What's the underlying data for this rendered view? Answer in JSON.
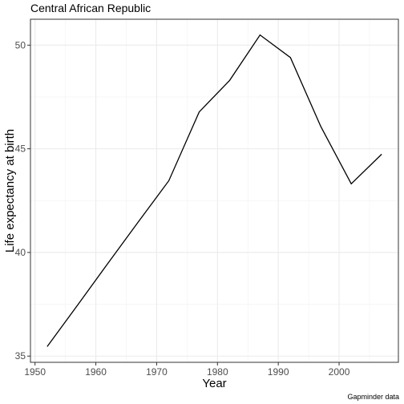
{
  "chart_data": {
    "type": "line",
    "title": "Central African Republic",
    "xlabel": "Year",
    "ylabel": "Life expectancy at birth",
    "caption": "Gapminder data",
    "x": [
      1952,
      1957,
      1962,
      1967,
      1972,
      1977,
      1982,
      1987,
      1992,
      1997,
      2002,
      2007
    ],
    "series": [
      {
        "values": [
          35.46,
          37.46,
          39.48,
          41.48,
          43.46,
          46.78,
          48.3,
          50.49,
          49.4,
          46.07,
          43.31,
          44.74
        ]
      }
    ],
    "xlim": [
      1949.25,
      2009.75
    ],
    "ylim": [
      34.7,
      51.25
    ],
    "xticks": [
      1950,
      1960,
      1970,
      1980,
      1990,
      2000
    ],
    "xminor": [
      1955,
      1965,
      1975,
      1985,
      1995,
      2005
    ],
    "yticks": [
      35,
      40,
      45,
      50
    ],
    "yminor": [
      37.5,
      42.5,
      47.5
    ],
    "grid": true,
    "line_color": "#000000"
  }
}
